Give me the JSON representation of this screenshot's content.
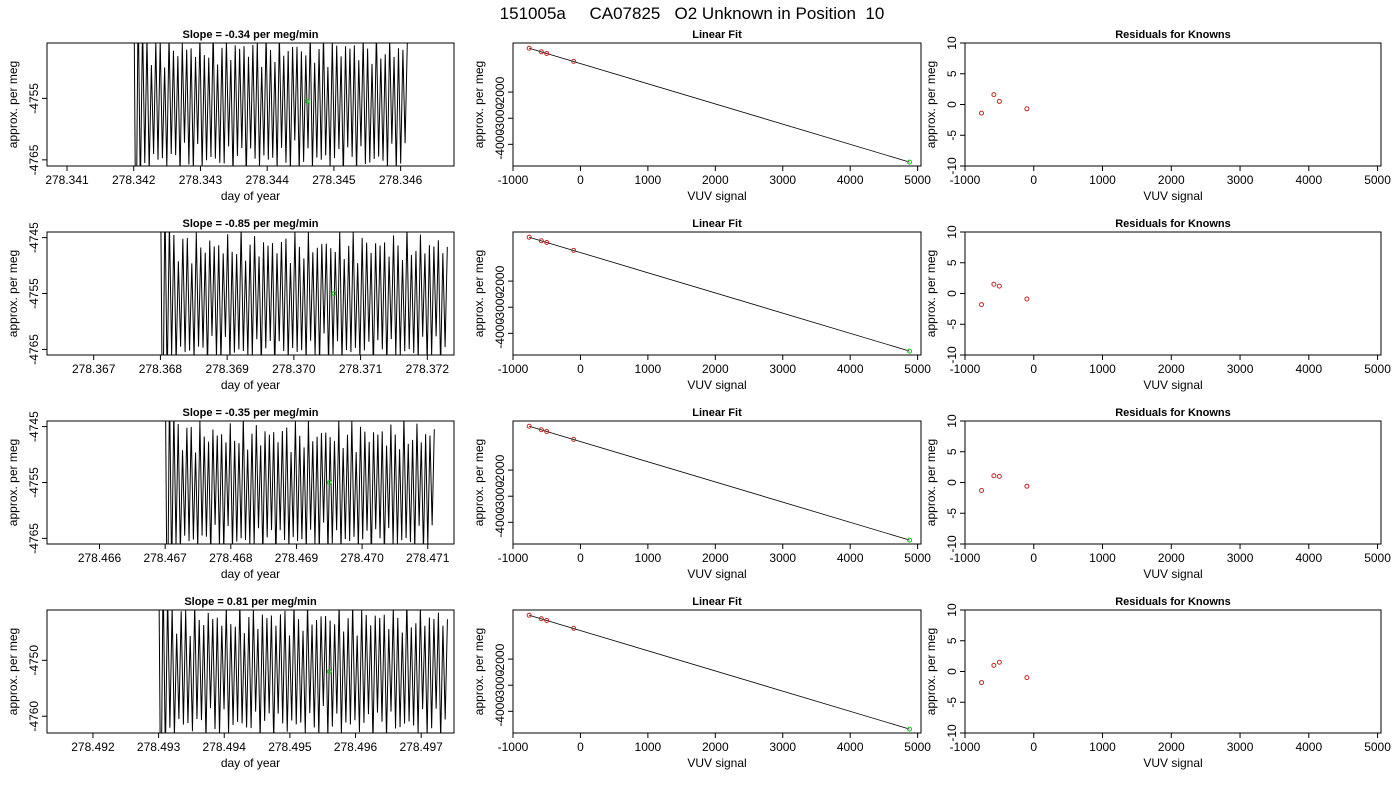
{
  "figure_title": "151005a     CA07825   O2 Unknown in Position  10",
  "chart_data": [
    {
      "type": "line",
      "title": "Slope =  -0.34  per meg/min",
      "xlabel": "day of year",
      "ylabel": "approx. per meg",
      "xlim": [
        278.3407,
        278.3468
      ],
      "ylim": [
        -4766,
        -4746
      ],
      "x_ticks": [
        "278.341",
        "278.342",
        "278.343",
        "278.344",
        "278.345",
        "278.346"
      ],
      "x_tick_values": [
        278.341,
        278.342,
        278.343,
        278.344,
        278.345,
        278.346
      ],
      "y_ticks": [
        "-4755",
        "-4765"
      ],
      "y_tick_values": [
        -4755,
        -4765
      ],
      "trace": {
        "x_start": 278.342,
        "x_end": 278.3461,
        "center": -4756,
        "amplitude": 9,
        "cycles": 62
      },
      "marker": {
        "x": 278.3446,
        "y": -4755.5,
        "color": "#00cc00"
      }
    },
    {
      "type": "scatter",
      "title": "Linear Fit",
      "xlabel": "VUV signal",
      "ylabel": "approx. per meg",
      "xlim": [
        -1000,
        5050
      ],
      "ylim": [
        -4830,
        -120
      ],
      "x_ticks": [
        "-1000",
        "0",
        "1000",
        "2000",
        "3000",
        "4000",
        "5000"
      ],
      "x_tick_values": [
        -1000,
        0,
        1000,
        2000,
        3000,
        4000,
        5000
      ],
      "y_ticks": [
        "-2000",
        "-3000",
        "-4000"
      ],
      "y_tick_values": [
        -2000,
        -3000,
        -4000
      ],
      "fit_line": [
        [
          -760,
          -320
        ],
        [
          4880,
          -4680
        ]
      ],
      "knowns": {
        "color": "#cc2222",
        "points": [
          [
            -760,
            -320
          ],
          [
            -580,
            -455
          ],
          [
            -500,
            -520
          ],
          [
            -100,
            -825
          ]
        ]
      },
      "unknown": {
        "color": "#00cc00",
        "points": [
          [
            4880,
            -4680
          ]
        ]
      }
    },
    {
      "type": "scatter",
      "title": "Residuals for Knowns",
      "xlabel": "VUV signal",
      "ylabel": "approx. per meg",
      "xlim": [
        -1000,
        5050
      ],
      "ylim": [
        -10,
        10
      ],
      "x_ticks": [
        "-1000",
        "0",
        "1000",
        "2000",
        "3000",
        "4000",
        "5000"
      ],
      "x_tick_values": [
        -1000,
        0,
        1000,
        2000,
        3000,
        4000,
        5000
      ],
      "y_ticks": [
        "-10",
        "-5",
        "0",
        "5",
        "10"
      ],
      "y_tick_values": [
        -10,
        -5,
        0,
        5,
        10
      ],
      "points": {
        "color": "#cc2222",
        "values": [
          [
            -760,
            -1.4
          ],
          [
            -580,
            1.6
          ],
          [
            -500,
            0.5
          ],
          [
            -100,
            -0.7
          ]
        ]
      }
    },
    {
      "type": "line",
      "title": "Slope =  -0.85  per meg/min",
      "xlabel": "day of year",
      "ylabel": "approx. per meg",
      "xlim": [
        278.3663,
        278.3724
      ],
      "ylim": [
        -4766,
        -4744
      ],
      "x_ticks": [
        "278.367",
        "278.368",
        "278.369",
        "278.370",
        "278.371",
        "278.372"
      ],
      "x_tick_values": [
        278.367,
        278.368,
        278.369,
        278.37,
        278.371,
        278.372
      ],
      "y_ticks": [
        "-4745",
        "-4755",
        "-4765"
      ],
      "y_tick_values": [
        -4745,
        -4755,
        -4765
      ],
      "trace": {
        "x_start": 278.368,
        "x_end": 278.3723,
        "center": -4756,
        "amplitude": 9.5,
        "cycles": 64
      },
      "marker": {
        "x": 278.3706,
        "y": -4755,
        "color": "#00cc00"
      }
    },
    {
      "type": "scatter",
      "title": "Linear Fit",
      "xlabel": "VUV signal",
      "ylabel": "approx. per meg",
      "xlim": [
        -1000,
        5050
      ],
      "ylim": [
        -4830,
        -120
      ],
      "x_ticks": [
        "-1000",
        "0",
        "1000",
        "2000",
        "3000",
        "4000",
        "5000"
      ],
      "x_tick_values": [
        -1000,
        0,
        1000,
        2000,
        3000,
        4000,
        5000
      ],
      "y_ticks": [
        "-2000",
        "-3000",
        "-4000"
      ],
      "y_tick_values": [
        -2000,
        -3000,
        -4000
      ],
      "fit_line": [
        [
          -760,
          -320
        ],
        [
          4880,
          -4680
        ]
      ],
      "knowns": {
        "color": "#cc2222",
        "points": [
          [
            -760,
            -320
          ],
          [
            -580,
            -455
          ],
          [
            -500,
            -520
          ],
          [
            -100,
            -825
          ]
        ]
      },
      "unknown": {
        "color": "#00cc00",
        "points": [
          [
            4880,
            -4680
          ]
        ]
      }
    },
    {
      "type": "scatter",
      "title": "Residuals for Knowns",
      "xlabel": "VUV signal",
      "ylabel": "approx. per meg",
      "xlim": [
        -1000,
        5050
      ],
      "ylim": [
        -10,
        10
      ],
      "x_ticks": [
        "-1000",
        "0",
        "1000",
        "2000",
        "3000",
        "4000",
        "5000"
      ],
      "x_tick_values": [
        -1000,
        0,
        1000,
        2000,
        3000,
        4000,
        5000
      ],
      "y_ticks": [
        "-10",
        "-5",
        "0",
        "5",
        "10"
      ],
      "y_tick_values": [
        -10,
        -5,
        0,
        5,
        10
      ],
      "points": {
        "color": "#cc2222",
        "values": [
          [
            -760,
            -1.8
          ],
          [
            -580,
            1.5
          ],
          [
            -500,
            1.2
          ],
          [
            -100,
            -0.9
          ]
        ]
      }
    },
    {
      "type": "line",
      "title": "Slope =  -0.35  per meg/min",
      "xlabel": "day of year",
      "ylabel": "approx. per meg",
      "xlim": [
        278.4652,
        278.4714
      ],
      "ylim": [
        -4766,
        -4744
      ],
      "x_ticks": [
        "278.466",
        "278.467",
        "278.468",
        "278.469",
        "278.470",
        "278.471"
      ],
      "x_tick_values": [
        278.466,
        278.467,
        278.468,
        278.469,
        278.47,
        278.471
      ],
      "y_ticks": [
        "-4745",
        "-4755",
        "-4765"
      ],
      "y_tick_values": [
        -4745,
        -4755,
        -4765
      ],
      "trace": {
        "x_start": 278.467,
        "x_end": 278.4711,
        "center": -4756,
        "amplitude": 9.5,
        "cycles": 62
      },
      "marker": {
        "x": 278.4695,
        "y": -4755,
        "color": "#00cc00"
      }
    },
    {
      "type": "scatter",
      "title": "Linear Fit",
      "xlabel": "VUV signal",
      "ylabel": "approx. per meg",
      "xlim": [
        -1000,
        5050
      ],
      "ylim": [
        -4830,
        -120
      ],
      "x_ticks": [
        "-1000",
        "0",
        "1000",
        "2000",
        "3000",
        "4000",
        "5000"
      ],
      "x_tick_values": [
        -1000,
        0,
        1000,
        2000,
        3000,
        4000,
        5000
      ],
      "y_ticks": [
        "-2000",
        "-3000",
        "-4000"
      ],
      "y_tick_values": [
        -2000,
        -3000,
        -4000
      ],
      "fit_line": [
        [
          -760,
          -320
        ],
        [
          4880,
          -4680
        ]
      ],
      "knowns": {
        "color": "#cc2222",
        "points": [
          [
            -760,
            -320
          ],
          [
            -580,
            -455
          ],
          [
            -500,
            -520
          ],
          [
            -100,
            -825
          ]
        ]
      },
      "unknown": {
        "color": "#00cc00",
        "points": [
          [
            4880,
            -4680
          ]
        ]
      }
    },
    {
      "type": "scatter",
      "title": "Residuals for Knowns",
      "xlabel": "VUV signal",
      "ylabel": "approx. per meg",
      "xlim": [
        -1000,
        5050
      ],
      "ylim": [
        -10,
        10
      ],
      "x_ticks": [
        "-1000",
        "0",
        "1000",
        "2000",
        "3000",
        "4000",
        "5000"
      ],
      "x_tick_values": [
        -1000,
        0,
        1000,
        2000,
        3000,
        4000,
        5000
      ],
      "y_ticks": [
        "-10",
        "-5",
        "0",
        "5",
        "10"
      ],
      "y_tick_values": [
        -10,
        -5,
        0,
        5,
        10
      ],
      "points": {
        "color": "#cc2222",
        "values": [
          [
            -760,
            -1.3
          ],
          [
            -580,
            1.1
          ],
          [
            -500,
            1.0
          ],
          [
            -100,
            -0.6
          ]
        ]
      }
    },
    {
      "type": "line",
      "title": "Slope =  0.81  per meg/min",
      "xlabel": "day of year",
      "ylabel": "approx. per meg",
      "xlim": [
        278.4913,
        278.4975
      ],
      "ylim": [
        -4763,
        -4741
      ],
      "x_ticks": [
        "278.492",
        "278.493",
        "278.494",
        "278.495",
        "278.496",
        "278.497"
      ],
      "x_tick_values": [
        278.492,
        278.493,
        278.494,
        278.495,
        278.496,
        278.497
      ],
      "y_ticks": [
        "-4750",
        "-4760"
      ],
      "y_tick_values": [
        -4750,
        -4760
      ],
      "trace": {
        "x_start": 278.493,
        "x_end": 278.4974,
        "center": -4752,
        "amplitude": 9.5,
        "cycles": 64
      },
      "marker": {
        "x": 278.4956,
        "y": -4752,
        "color": "#00cc00"
      }
    },
    {
      "type": "scatter",
      "title": "Linear Fit",
      "xlabel": "VUV signal",
      "ylabel": "approx. per meg",
      "xlim": [
        -1000,
        5050
      ],
      "ylim": [
        -4830,
        -120
      ],
      "x_ticks": [
        "-1000",
        "0",
        "1000",
        "2000",
        "3000",
        "4000",
        "5000"
      ],
      "x_tick_values": [
        -1000,
        0,
        1000,
        2000,
        3000,
        4000,
        5000
      ],
      "y_ticks": [
        "-2000",
        "-3000",
        "-4000"
      ],
      "y_tick_values": [
        -2000,
        -3000,
        -4000
      ],
      "fit_line": [
        [
          -760,
          -320
        ],
        [
          4880,
          -4680
        ]
      ],
      "knowns": {
        "color": "#cc2222",
        "points": [
          [
            -760,
            -320
          ],
          [
            -580,
            -455
          ],
          [
            -500,
            -520
          ],
          [
            -100,
            -825
          ]
        ]
      },
      "unknown": {
        "color": "#00cc00",
        "points": [
          [
            4880,
            -4680
          ]
        ]
      }
    },
    {
      "type": "scatter",
      "title": "Residuals for Knowns",
      "xlabel": "VUV signal",
      "ylabel": "approx. per meg",
      "xlim": [
        -1000,
        5050
      ],
      "ylim": [
        -10,
        10
      ],
      "x_ticks": [
        "-1000",
        "0",
        "1000",
        "2000",
        "3000",
        "4000",
        "5000"
      ],
      "x_tick_values": [
        -1000,
        0,
        1000,
        2000,
        3000,
        4000,
        5000
      ],
      "y_ticks": [
        "-10",
        "-5",
        "0",
        "5",
        "10"
      ],
      "y_tick_values": [
        -10,
        -5,
        0,
        5,
        10
      ],
      "points": {
        "color": "#cc2222",
        "values": [
          [
            -760,
            -1.8
          ],
          [
            -580,
            1.0
          ],
          [
            -500,
            1.5
          ],
          [
            -100,
            -1.0
          ]
        ]
      }
    }
  ]
}
